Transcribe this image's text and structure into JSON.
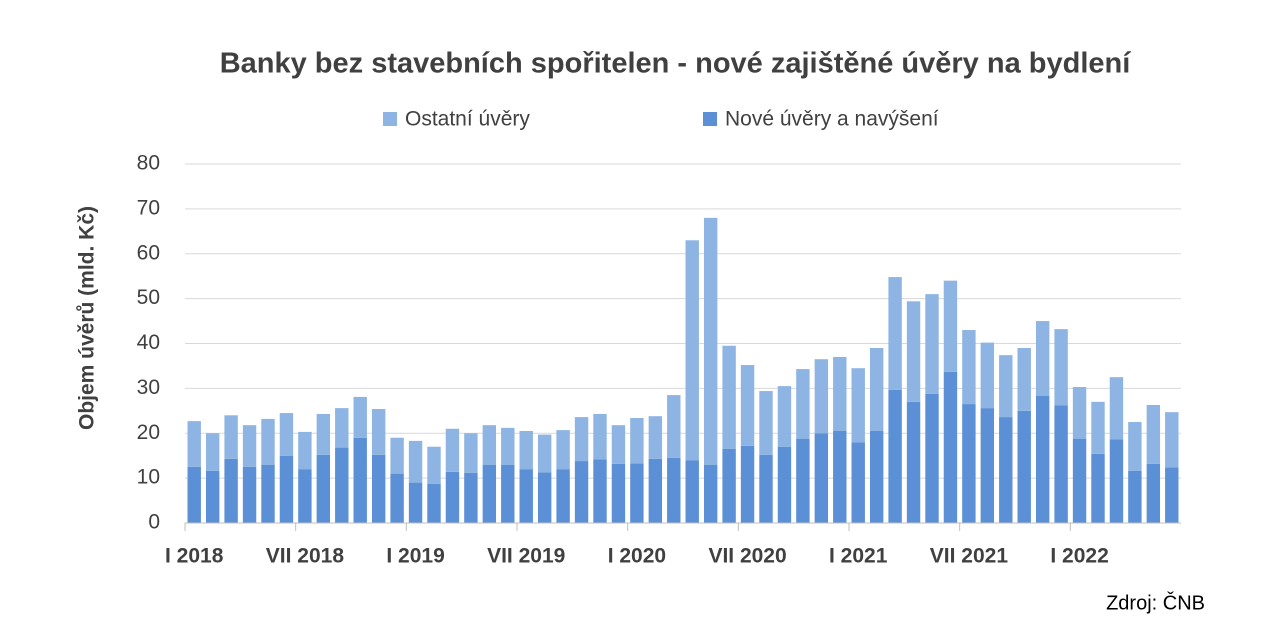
{
  "chart_data": {
    "type": "stacked_bar",
    "title": "Banky bez stavebních spořitelen - nové zajištěné úvěry na bydlení",
    "y_label": "Objem úvěrů (mld. Kč)",
    "source": "Zdroj: ČNB",
    "categories": [
      "I 2018",
      null,
      null,
      null,
      null,
      null,
      "VII 2018",
      null,
      null,
      null,
      null,
      null,
      "I 2019",
      null,
      null,
      null,
      null,
      null,
      "VII 2019",
      null,
      null,
      null,
      null,
      null,
      "I 2020",
      null,
      null,
      null,
      null,
      null,
      "VII 2020",
      null,
      null,
      null,
      null,
      null,
      "I 2021",
      null,
      null,
      null,
      null,
      null,
      "VII 2021",
      null,
      null,
      null,
      null,
      null,
      "I 2022",
      null,
      null,
      null,
      null,
      null
    ],
    "series": [
      {
        "name": "Nové úvěry a navýšení",
        "color": "#5b8fd6",
        "values": [
          12.5,
          11.6,
          14.3,
          12.5,
          13,
          15,
          12,
          15.2,
          16.8,
          19,
          15.2,
          11,
          9,
          8.7,
          11.4,
          11.2,
          13,
          13,
          12,
          11.3,
          12,
          13.8,
          14.2,
          13.2,
          13.3,
          14.3,
          14.5,
          14,
          13,
          16.5,
          17.2,
          15.2,
          17,
          18.8,
          20,
          20.5,
          18,
          20.5,
          29.7,
          27,
          28.8,
          33.7,
          26.5,
          25.6,
          23.6,
          25,
          28.3,
          26.2,
          18.8,
          15.4,
          18.6,
          11.6,
          13.2,
          12.4
        ]
      },
      {
        "name": "Ostatní úvěry",
        "color": "#8db4e2",
        "values": [
          10.2,
          8.4,
          9.7,
          9.3,
          10.2,
          9.5,
          8.3,
          9.1,
          8.8,
          9.1,
          10.2,
          8,
          9.3,
          8.3,
          9.6,
          8.8,
          8.8,
          8.2,
          8.5,
          8.4,
          8.7,
          9.8,
          10.1,
          8.6,
          10.1,
          9.5,
          14,
          49,
          55,
          23,
          18,
          14.2,
          13.5,
          15.5,
          16.5,
          16.5,
          16.5,
          18.5,
          25.1,
          22.4,
          22.2,
          20.3,
          16.5,
          14.6,
          13.8,
          14,
          16.7,
          17,
          11.5,
          11.6,
          13.9,
          10.9,
          13.1,
          12.3
        ]
      }
    ],
    "legend_order": [
      1,
      0
    ],
    "ylim": [
      0,
      80
    ],
    "yticks": [
      0,
      10,
      20,
      30,
      40,
      50,
      60,
      70,
      80
    ],
    "grid": true
  }
}
